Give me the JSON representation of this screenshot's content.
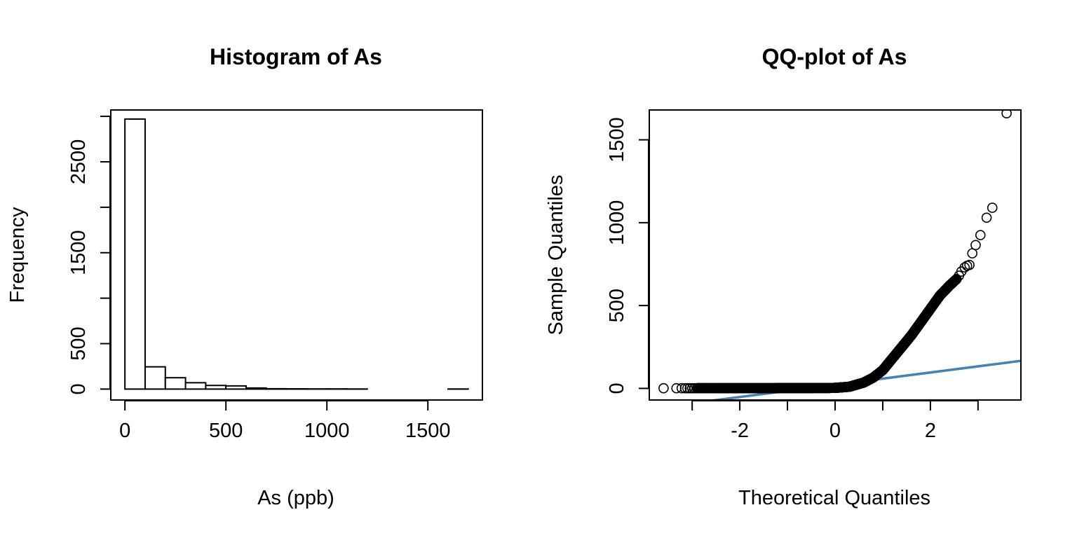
{
  "chart_data": [
    {
      "type": "bar",
      "title": "Histogram of As",
      "xlabel": "As (ppb)",
      "ylabel": "Frequency",
      "xlim": [
        -70,
        1770
      ],
      "ylim": [
        -120,
        3070
      ],
      "xticks": [
        0,
        500,
        1000,
        1500
      ],
      "yticks": [
        0,
        500,
        1500,
        2500
      ],
      "xtick_labels": [
        "0",
        "500",
        "1000",
        "1500"
      ],
      "ytick_labels": [
        "0",
        "500",
        "1500",
        "2500"
      ],
      "bins": [
        {
          "start": 0,
          "end": 100,
          "count": 2970
        },
        {
          "start": 100,
          "end": 200,
          "count": 245
        },
        {
          "start": 200,
          "end": 300,
          "count": 125
        },
        {
          "start": 300,
          "end": 400,
          "count": 70
        },
        {
          "start": 400,
          "end": 500,
          "count": 40
        },
        {
          "start": 500,
          "end": 600,
          "count": 35
        },
        {
          "start": 600,
          "end": 700,
          "count": 12
        },
        {
          "start": 700,
          "end": 800,
          "count": 4
        },
        {
          "start": 800,
          "end": 900,
          "count": 3
        },
        {
          "start": 900,
          "end": 1000,
          "count": 2
        },
        {
          "start": 1000,
          "end": 1100,
          "count": 2
        },
        {
          "start": 1100,
          "end": 1200,
          "count": 1
        },
        {
          "start": 1200,
          "end": 1300,
          "count": 0
        },
        {
          "start": 1300,
          "end": 1400,
          "count": 0
        },
        {
          "start": 1400,
          "end": 1500,
          "count": 0
        },
        {
          "start": 1500,
          "end": 1600,
          "count": 0
        },
        {
          "start": 1600,
          "end": 1700,
          "count": 1
        }
      ],
      "grid": false
    },
    {
      "type": "scatter",
      "title": "QQ-plot of As",
      "xlabel": "Theoretical Quantiles",
      "ylabel": "Sample Quantiles",
      "xlim": [
        -3.9,
        3.9
      ],
      "ylim": [
        -70,
        1680
      ],
      "xticks": [
        -2,
        0,
        2
      ],
      "yticks": [
        0,
        500,
        1000,
        1500
      ],
      "xtick_labels": [
        "-2",
        "0",
        "2"
      ],
      "ytick_labels": [
        "0",
        "500",
        "1000",
        "1500"
      ],
      "outlier_points": [
        {
          "x": 3.6,
          "y": 1660
        },
        {
          "x": 3.3,
          "y": 1090
        },
        {
          "x": 3.18,
          "y": 1030
        },
        {
          "x": 3.05,
          "y": 925
        },
        {
          "x": 2.95,
          "y": 865
        },
        {
          "x": 2.88,
          "y": 815
        },
        {
          "x": 2.82,
          "y": 745
        },
        {
          "x": 2.77,
          "y": 740
        },
        {
          "x": 2.72,
          "y": 730
        },
        {
          "x": 2.65,
          "y": 705
        },
        {
          "x": 2.6,
          "y": 680
        },
        {
          "x": -3.6,
          "y": 1
        },
        {
          "x": -3.33,
          "y": 1
        },
        {
          "x": -3.22,
          "y": 1
        },
        {
          "x": -3.15,
          "y": 1
        },
        {
          "x": -3.1,
          "y": 1
        },
        {
          "x": -3.05,
          "y": 1
        },
        {
          "x": -3.0,
          "y": 1
        },
        {
          "x": -2.95,
          "y": 1
        }
      ],
      "body_curve": [
        [
          -2.9,
          1
        ],
        [
          -2,
          1
        ],
        [
          -1,
          1.5
        ],
        [
          0,
          3
        ],
        [
          0.3,
          10
        ],
        [
          0.6,
          35
        ],
        [
          0.8,
          65
        ],
        [
          1.0,
          110
        ],
        [
          1.2,
          180
        ],
        [
          1.4,
          250
        ],
        [
          1.6,
          320
        ],
        [
          1.8,
          400
        ],
        [
          2.0,
          480
        ],
        [
          2.2,
          560
        ],
        [
          2.4,
          620
        ],
        [
          2.55,
          660
        ]
      ],
      "reference_line": {
        "intercept": 22,
        "slope": 37,
        "color": "#4682B4"
      },
      "grid": false
    }
  ]
}
